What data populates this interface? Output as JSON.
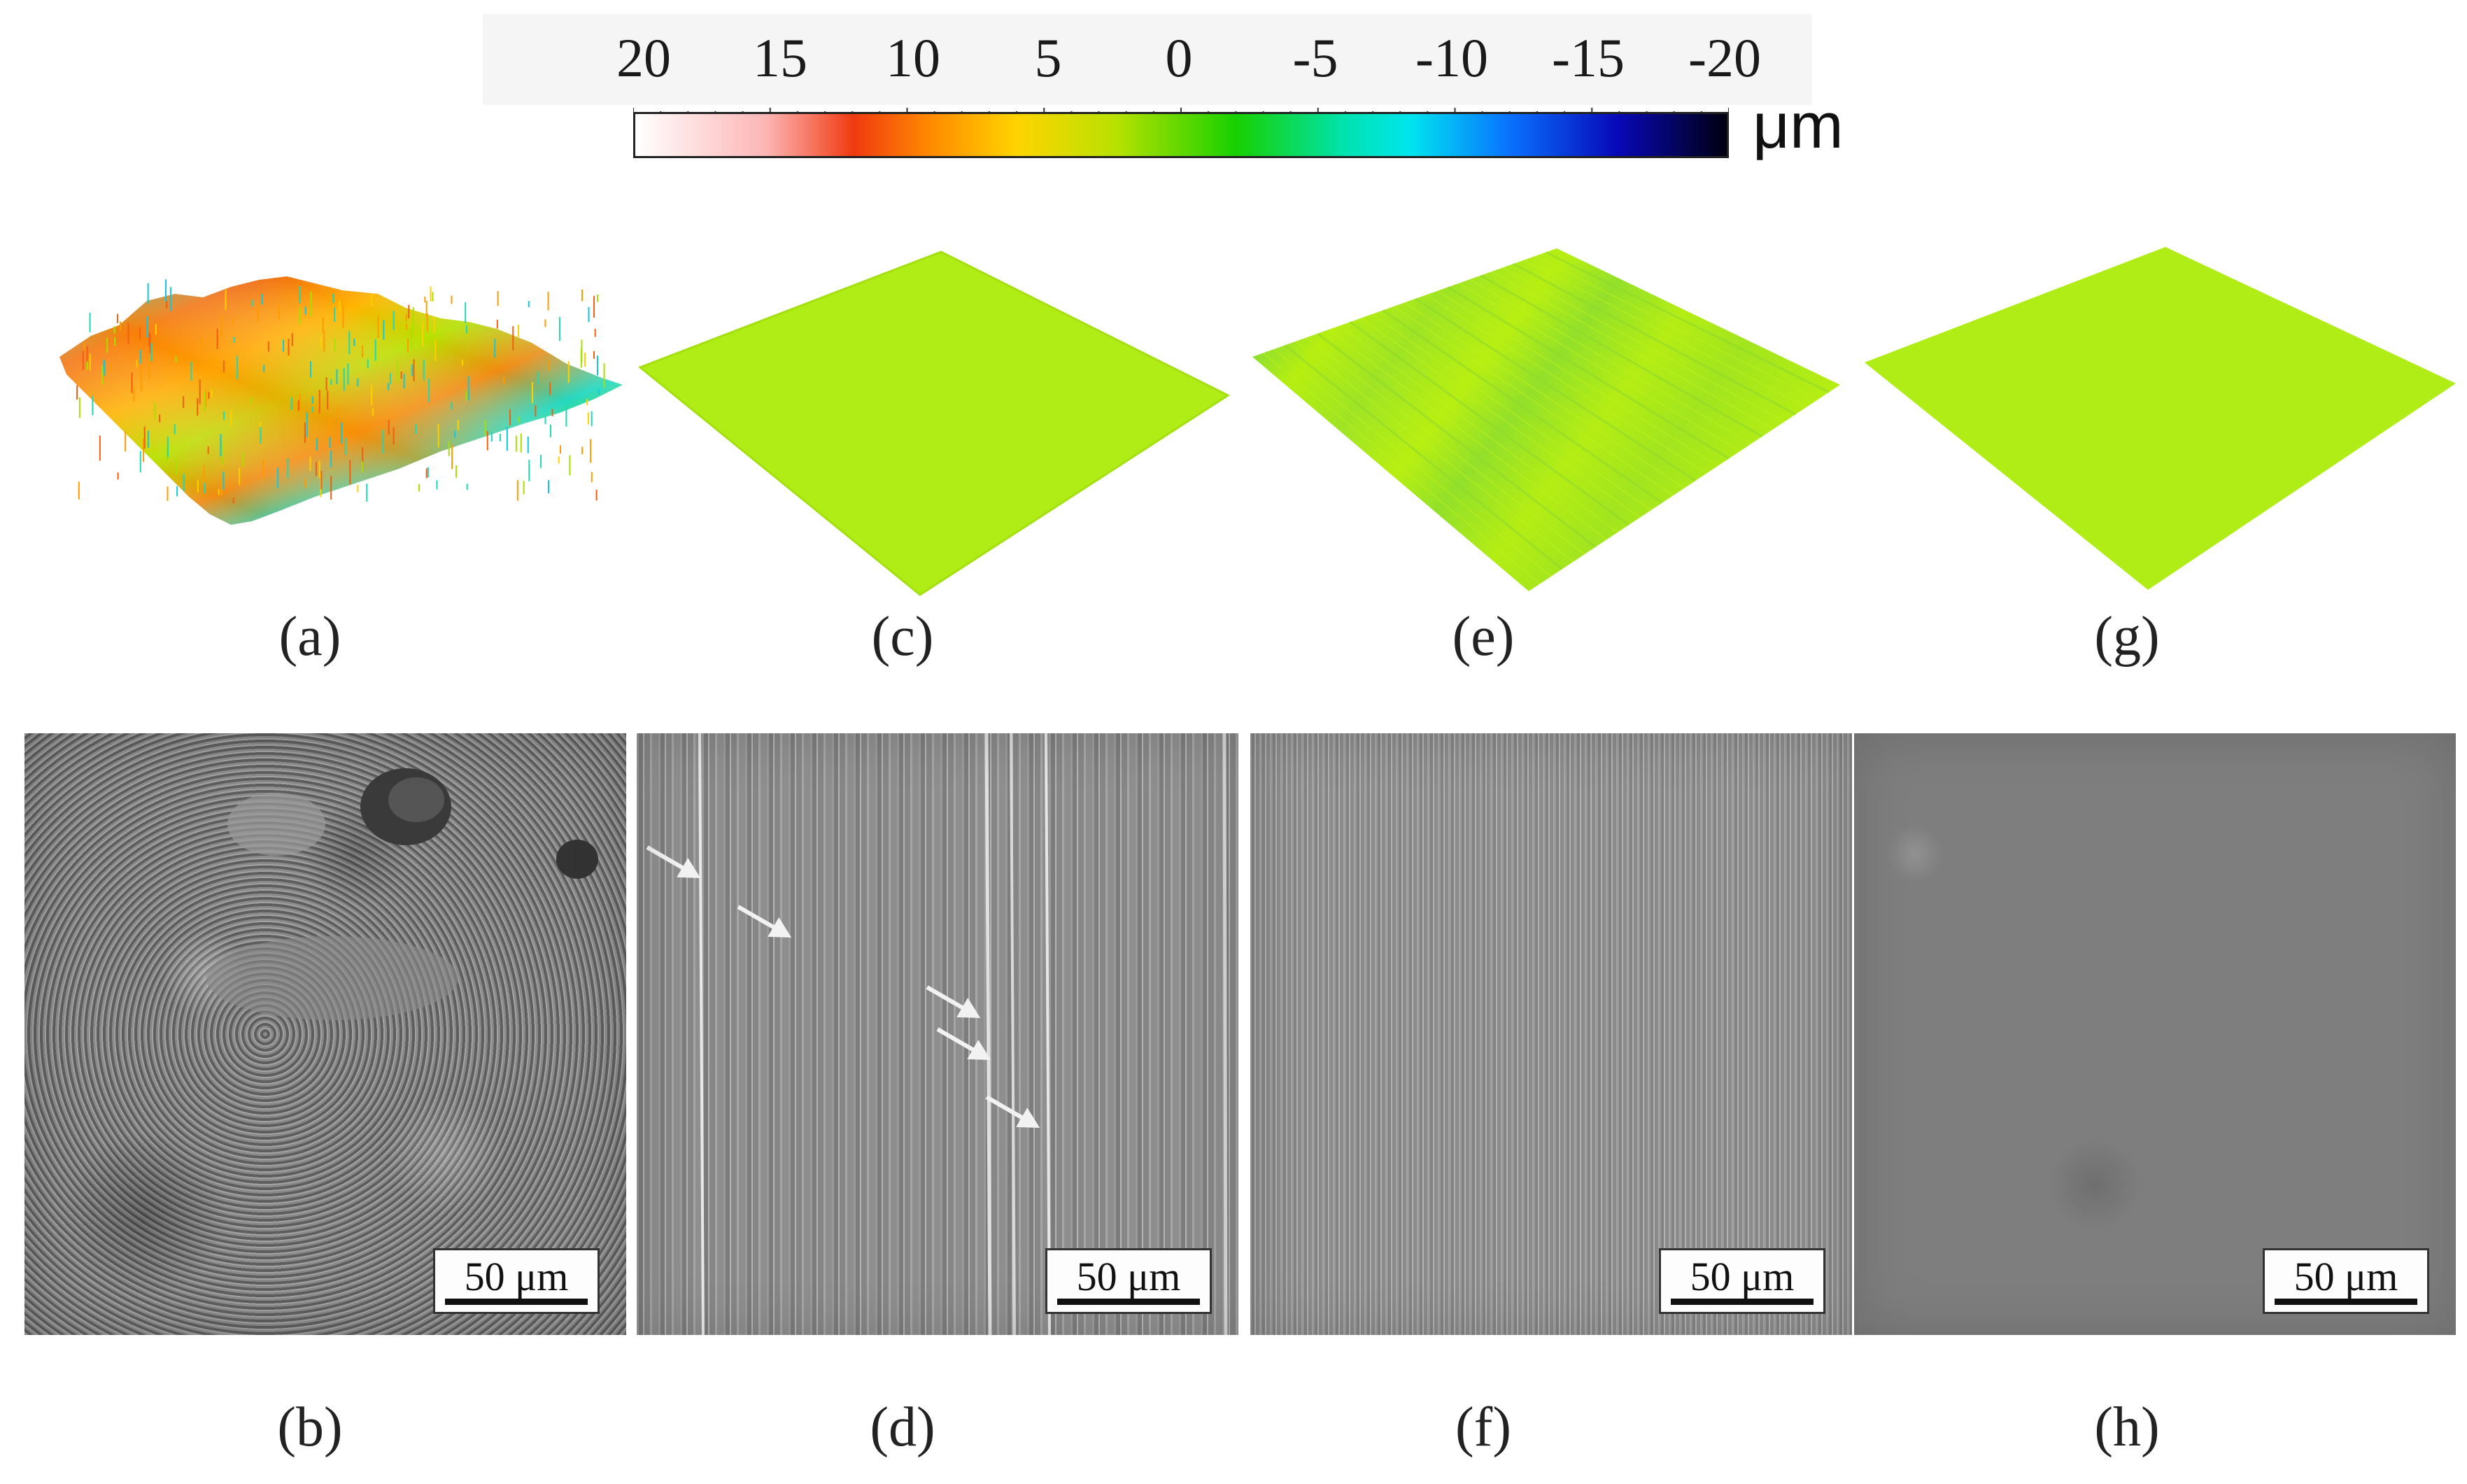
{
  "color_scale": {
    "tick_labels": [
      "20",
      "15",
      "10",
      "5",
      "0",
      "-5",
      "-10",
      "-15",
      "-20"
    ],
    "unit": "μm",
    "range": [
      20,
      -20
    ],
    "colors": [
      "#ffffff",
      "#f03a10",
      "#ffd400",
      "#b8e100",
      "#18d000",
      "#00e4ee",
      "#0808b8",
      "#000010"
    ]
  },
  "surface_panels": [
    {
      "label": "(a)",
      "style": "rough-multicolor"
    },
    {
      "label": "(c)",
      "style": "flat-yellowgreen"
    },
    {
      "label": "(e)",
      "style": "striped-yellowgreen"
    },
    {
      "label": "(g)",
      "style": "flat-yellowgreen"
    }
  ],
  "sem_panels": [
    {
      "label": "(b)",
      "scale_bar": "50 μm",
      "texture": "rough"
    },
    {
      "label": "(d)",
      "scale_bar": "50 μm",
      "texture": "coarse-grooves",
      "arrows": 5
    },
    {
      "label": "(f)",
      "scale_bar": "50 μm",
      "texture": "fine-grooves"
    },
    {
      "label": "(h)",
      "scale_bar": "50 μm",
      "texture": "smooth"
    }
  ]
}
